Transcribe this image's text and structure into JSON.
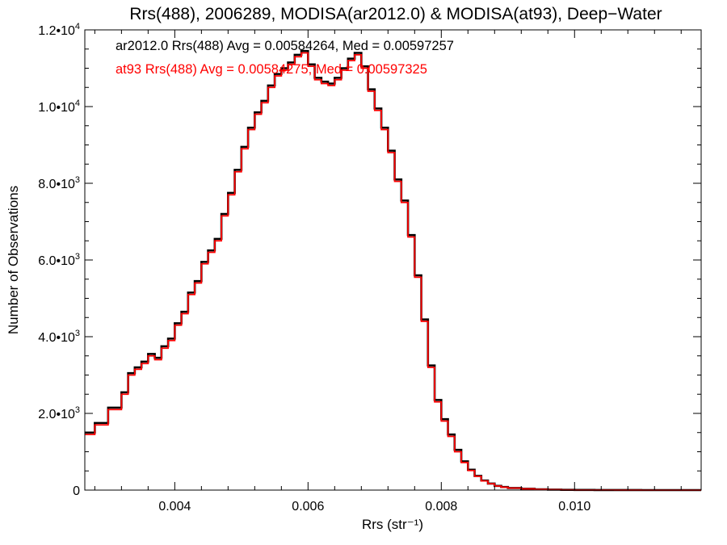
{
  "chart_data": {
    "type": "line",
    "title": "Rrs(488), 2006289, MODISA(ar2012.0) & MODISA(at93), Deep−Water",
    "xlabel": "Rrs (str⁻¹)",
    "ylabel": "Number of Observations",
    "xlim": [
      0.00265,
      0.0119
    ],
    "ylim": [
      0,
      12000
    ],
    "x_ticks": [
      0.004,
      0.006,
      0.008,
      0.01
    ],
    "x_tick_labels": [
      "0.004",
      "0.006",
      "0.008",
      "0.010"
    ],
    "y_ticks": [
      0,
      2000,
      4000,
      6000,
      8000,
      10000,
      12000
    ],
    "y_tick_labels": [
      {
        "mant": "0",
        "exp": ""
      },
      {
        "mant": "2.0•10",
        "exp": "3"
      },
      {
        "mant": "4.0•10",
        "exp": "3"
      },
      {
        "mant": "6.0•10",
        "exp": "3"
      },
      {
        "mant": "8.0•10",
        "exp": "3"
      },
      {
        "mant": "1.0•10",
        "exp": "4"
      },
      {
        "mant": "1.2•10",
        "exp": "4"
      }
    ],
    "grid": false,
    "legend_position": "top-left",
    "series": [
      {
        "name": "ar2012.0 Rrs(488) Avg = 0.00584264, Med = 0.00597257",
        "color": "#000000",
        "x": [
          0.00265,
          0.0028,
          0.003,
          0.0032,
          0.0033,
          0.0034,
          0.0035,
          0.0036,
          0.0037,
          0.0038,
          0.0039,
          0.004,
          0.0041,
          0.0042,
          0.0043,
          0.0044,
          0.0045,
          0.0046,
          0.0047,
          0.0048,
          0.0049,
          0.005,
          0.0051,
          0.0052,
          0.0053,
          0.0054,
          0.0055,
          0.0056,
          0.0057,
          0.0058,
          0.0059,
          0.006,
          0.0061,
          0.0062,
          0.0063,
          0.0064,
          0.0065,
          0.0066,
          0.0067,
          0.0068,
          0.0069,
          0.007,
          0.0071,
          0.0072,
          0.0073,
          0.0074,
          0.0075,
          0.0076,
          0.0077,
          0.0078,
          0.0079,
          0.008,
          0.0081,
          0.0082,
          0.0083,
          0.0084,
          0.0085,
          0.0086,
          0.0087,
          0.0088,
          0.0089,
          0.009,
          0.0092,
          0.0094,
          0.0096,
          0.0098,
          0.01,
          0.0103,
          0.0106,
          0.011,
          0.0115,
          0.0119
        ],
        "y": [
          1500,
          1750,
          2150,
          2550,
          3050,
          3200,
          3350,
          3550,
          3450,
          3750,
          3950,
          4350,
          4650,
          5150,
          5450,
          5950,
          6250,
          6550,
          7200,
          7750,
          8350,
          8950,
          9450,
          9850,
          10150,
          10550,
          10850,
          11000,
          11150,
          11350,
          11450,
          11100,
          10750,
          10650,
          10600,
          10750,
          11000,
          11250,
          11400,
          11050,
          10450,
          9950,
          9450,
          8850,
          8100,
          7550,
          6650,
          5600,
          4450,
          3250,
          2350,
          1850,
          1450,
          1050,
          750,
          530,
          370,
          250,
          170,
          110,
          80,
          55,
          35,
          20,
          12,
          6,
          3,
          2,
          1,
          0,
          0,
          0
        ]
      },
      {
        "name": "at93 Rrs(488) Avg = 0.00584275, Med = 0.00597325",
        "color": "#ff0000",
        "x": [
          0.00265,
          0.0028,
          0.003,
          0.0032,
          0.0033,
          0.0034,
          0.0035,
          0.0036,
          0.0037,
          0.0038,
          0.0039,
          0.004,
          0.0041,
          0.0042,
          0.0043,
          0.0044,
          0.0045,
          0.0046,
          0.0047,
          0.0048,
          0.0049,
          0.005,
          0.0051,
          0.0052,
          0.0053,
          0.0054,
          0.0055,
          0.0056,
          0.0057,
          0.0058,
          0.0059,
          0.006,
          0.0061,
          0.0062,
          0.0063,
          0.0064,
          0.0065,
          0.0066,
          0.0067,
          0.0068,
          0.0069,
          0.007,
          0.0071,
          0.0072,
          0.0073,
          0.0074,
          0.0075,
          0.0076,
          0.0077,
          0.0078,
          0.0079,
          0.008,
          0.0081,
          0.0082,
          0.0083,
          0.0084,
          0.0085,
          0.0086,
          0.0087,
          0.0088,
          0.0089,
          0.009,
          0.0092,
          0.0094,
          0.0096,
          0.0098,
          0.01,
          0.0103,
          0.0106,
          0.011,
          0.0115,
          0.0119
        ],
        "y": [
          1450,
          1700,
          2100,
          2500,
          3000,
          3150,
          3300,
          3500,
          3400,
          3700,
          3900,
          4300,
          4600,
          5100,
          5400,
          5900,
          6200,
          6500,
          7150,
          7700,
          8300,
          8900,
          9400,
          9800,
          10100,
          10500,
          10800,
          10950,
          11100,
          11300,
          11400,
          11050,
          10700,
          10600,
          10550,
          10700,
          10950,
          11200,
          11350,
          11000,
          10400,
          9900,
          9400,
          8800,
          8050,
          7500,
          6600,
          5550,
          4400,
          3200,
          2300,
          1800,
          1400,
          1000,
          720,
          510,
          360,
          240,
          165,
          105,
          75,
          52,
          33,
          18,
          11,
          5,
          3,
          2,
          1,
          0,
          0,
          0
        ]
      }
    ]
  }
}
